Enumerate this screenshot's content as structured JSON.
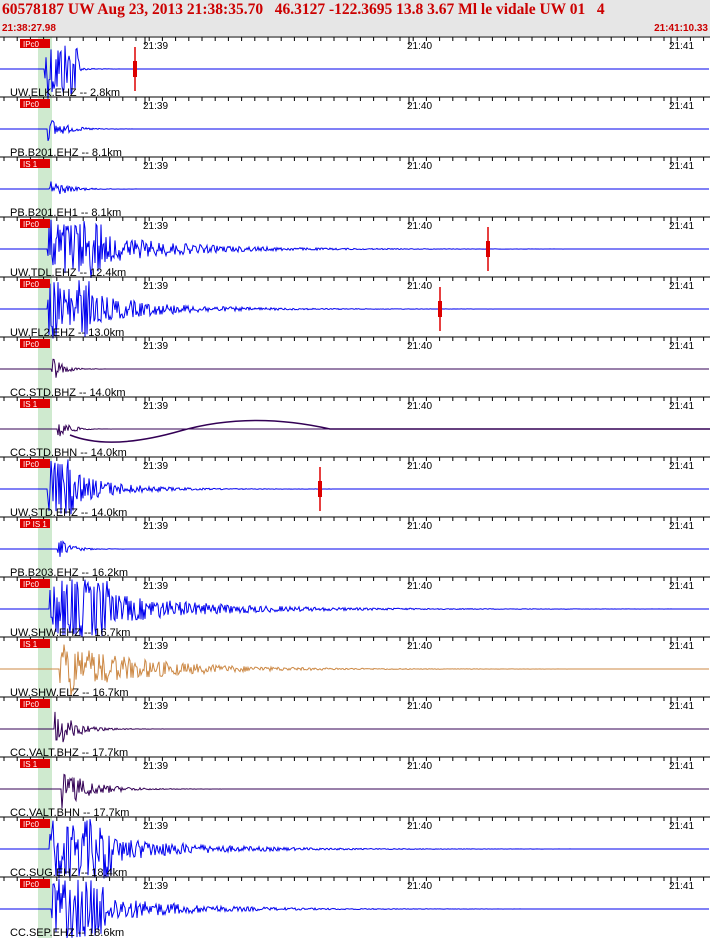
{
  "header": {
    "title": "60578187 UW Aug 23, 2013 21:38:35.70   46.3127 -122.3695 13.8 3.67 Ml le vidale UW 01   4",
    "start_time": "21:38:27.98",
    "end_time": "21:41:10.33"
  },
  "time_labels": [
    "21:39",
    "21:40",
    "21:41"
  ],
  "colors": {
    "trace_blue": "#0000ee",
    "trace_purple": "#330055",
    "trace_tan": "#cc8844",
    "pick_red": "#dd0000",
    "title_red": "#cc0000",
    "header_bg": "#e6e6e6",
    "window_green": "#a8d8a8"
  },
  "traces": [
    {
      "label": "UW.ELK.EHZ -- 2.8km",
      "phase": "IPc0",
      "color": "blue",
      "amp": 1.0,
      "decay": 0.08,
      "sat": 0.2
    },
    {
      "label": "PB.B201.EHZ -- 8.1km",
      "phase": "IPc0",
      "color": "blue",
      "amp": 0.45,
      "decay": 0.06,
      "sat": 0
    },
    {
      "label": "PB.B201.EH1 -- 8.1km",
      "phase": "IS 1",
      "color": "blue",
      "amp": 0.35,
      "decay": 0.06,
      "sat": 0
    },
    {
      "label": "UW.TDL.EHZ -- 12.4km",
      "phase": "IPc0",
      "color": "blue",
      "amp": 1.0,
      "decay": 0.012,
      "sat": 0.3
    },
    {
      "label": "UW.FL2.EHZ -- 13.0km",
      "phase": "IPc0",
      "color": "blue",
      "amp": 1.0,
      "decay": 0.014,
      "sat": 0.25
    },
    {
      "label": "CC.STD.BHZ -- 14.0km",
      "phase": "IPc0",
      "color": "purple",
      "amp": 0.55,
      "decay": 0.1,
      "sat": 0
    },
    {
      "label": "CC.STD.BHN -- 14.0km",
      "phase": "IS 1",
      "color": "purple",
      "amp": 0.5,
      "decay": 0.1,
      "sat": 0
    },
    {
      "label": "UW.STD.EHZ -- 14.0km",
      "phase": "IPc0",
      "color": "blue",
      "amp": 1.0,
      "decay": 0.022,
      "sat": 0.15
    },
    {
      "label": "PB.B203.EHZ -- 16.2km",
      "phase": "IP IS 1",
      "color": "blue",
      "amp": 0.4,
      "decay": 0.08,
      "sat": 0
    },
    {
      "label": "UW.SHW.EHZ -- 16.7km",
      "phase": "IPc0",
      "color": "blue",
      "amp": 1.0,
      "decay": 0.01,
      "sat": 0.35
    },
    {
      "label": "UW.SHW.ELZ -- 16.7km",
      "phase": "IS 1",
      "color": "tan",
      "amp": 0.95,
      "decay": 0.012,
      "sat": 0.1
    },
    {
      "label": "CC.VALT.BHZ -- 17.7km",
      "phase": "IPc0",
      "color": "purple",
      "amp": 0.7,
      "decay": 0.05,
      "sat": 0
    },
    {
      "label": "CC.VALT.BHN -- 17.7km",
      "phase": "IS 1",
      "color": "purple",
      "amp": 0.7,
      "decay": 0.035,
      "sat": 0
    },
    {
      "label": "CC.SUG.EHZ -- 18.4km",
      "phase": "IPc0",
      "color": "blue",
      "amp": 1.0,
      "decay": 0.012,
      "sat": 0.35
    },
    {
      "label": "CC.SEP.EHZ -- 18.6km",
      "phase": "IPc0",
      "color": "blue",
      "amp": 1.0,
      "decay": 0.013,
      "sat": 0.3
    }
  ]
}
